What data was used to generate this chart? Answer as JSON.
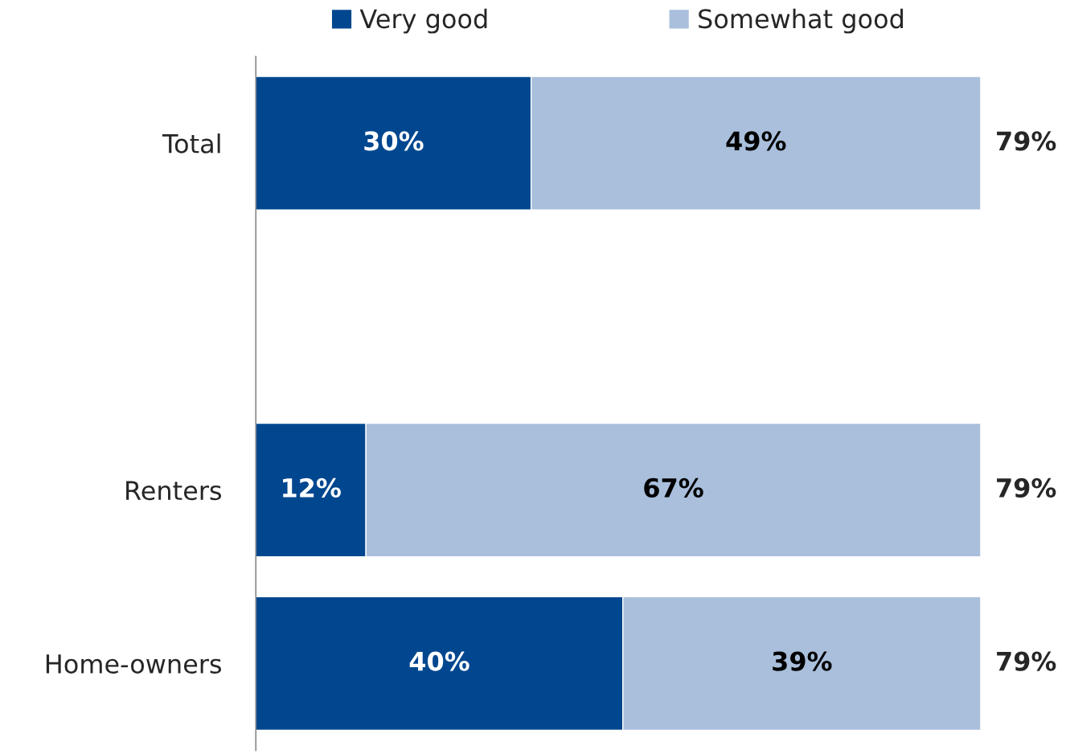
{
  "chart_data": {
    "type": "bar",
    "orientation": "horizontal",
    "stacked": true,
    "legend": "top",
    "tick_labels": "y",
    "grid": false,
    "categories": [
      "Total",
      null,
      "Renters",
      "Home-owners"
    ],
    "series": [
      {
        "name": "Very good",
        "color": "#00478f",
        "values": [
          30,
          null,
          12,
          40
        ],
        "value_labels": [
          "30%",
          null,
          "12%",
          "40%"
        ]
      },
      {
        "name": "Somewhat good",
        "color": "#a9bfdc",
        "values": [
          49,
          null,
          67,
          39
        ],
        "value_labels": [
          "49%",
          null,
          "67%",
          "39%"
        ]
      }
    ],
    "totals": [
      "79%",
      null,
      "79%",
      "79%"
    ]
  }
}
